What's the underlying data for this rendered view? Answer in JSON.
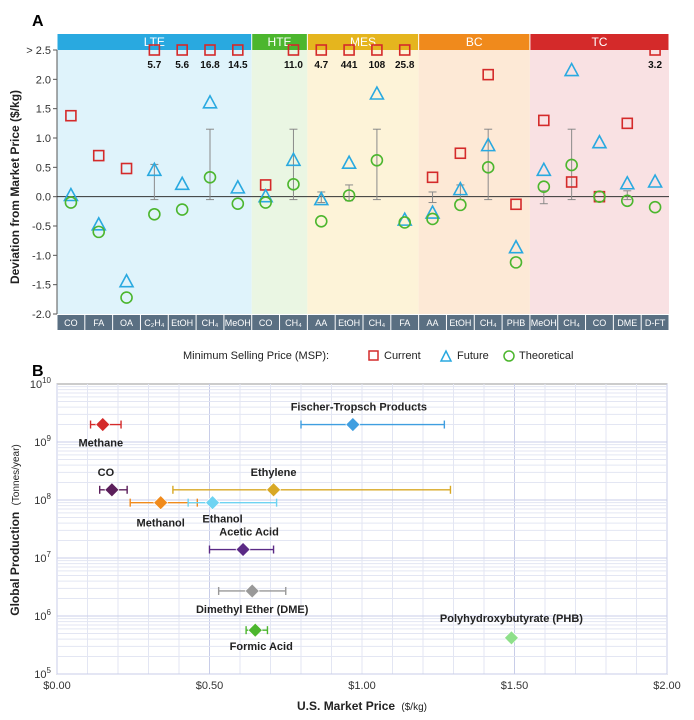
{
  "chart_data": [
    {
      "type": "scatter",
      "panel_label": "A",
      "ylabel": "Deviation from Market Price ($/kg)",
      "ylim": [
        -2.0,
        2.5
      ],
      "y_ticks": [
        "> 2.5",
        "2.0",
        "1.5",
        "1.0",
        "0.5",
        "0.0",
        "-0.5",
        "-1.0",
        "-1.5",
        "-2.0"
      ],
      "groups": [
        {
          "name": "LTE",
          "color": "#29a9e0",
          "bg": "#dff3fb",
          "start": 0,
          "end": 7
        },
        {
          "name": "HTE",
          "color": "#4cb62e",
          "bg": "#eaf6e3",
          "start": 7,
          "end": 9
        },
        {
          "name": "MES",
          "color": "#e5b51e",
          "bg": "#fdf3d8",
          "start": 9,
          "end": 13
        },
        {
          "name": "BC",
          "color": "#f08a1c",
          "bg": "#fde9d6",
          "start": 13,
          "end": 17
        },
        {
          "name": "TC",
          "color": "#d42a2a",
          "bg": "#f9e1e3",
          "start": 17,
          "end": 22
        }
      ],
      "categories": [
        "CO",
        "FA",
        "OA",
        "C₂H₄",
        "EtOH",
        "CH₄",
        "MeOH",
        "CO",
        "CH₄",
        "AA",
        "EtOH",
        "CH₄",
        "FA",
        "AA",
        "EtOH",
        "CH₄",
        "PHB",
        "MeOH",
        "CH₄",
        "CO",
        "DME",
        "D-FT"
      ],
      "series": [
        {
          "name": "Current",
          "color": "#d42a2a",
          "values": [
            1.38,
            0.7,
            0.48,
            2.5,
            2.5,
            2.5,
            2.5,
            0.2,
            2.5,
            2.5,
            2.5,
            2.5,
            2.5,
            0.33,
            0.74,
            2.08,
            -0.13,
            1.3,
            0.25,
            0.0,
            1.25,
            2.5
          ]
        },
        {
          "name": "Future",
          "color": "#29a9e0",
          "values": [
            0.02,
            -0.48,
            -1.45,
            0.45,
            0.21,
            1.6,
            0.15,
            0.0,
            0.62,
            -0.05,
            0.57,
            1.75,
            -0.4,
            -0.28,
            0.12,
            0.87,
            -0.87,
            0.45,
            2.15,
            0.92,
            0.22,
            0.25
          ]
        },
        {
          "name": "Theoretical",
          "color": "#4cb62e",
          "values": [
            -0.1,
            -0.6,
            -1.72,
            -0.3,
            -0.22,
            0.33,
            -0.12,
            -0.1,
            0.21,
            -0.42,
            0.02,
            0.62,
            -0.44,
            -0.38,
            -0.14,
            0.5,
            -1.12,
            0.17,
            0.54,
            0.0,
            -0.07,
            -0.18
          ]
        }
      ],
      "offscale_labels": [
        {
          "index": 3,
          "text": "5.7"
        },
        {
          "index": 4,
          "text": "5.6"
        },
        {
          "index": 5,
          "text": "16.8"
        },
        {
          "index": 6,
          "text": "14.5"
        },
        {
          "index": 8,
          "text": "11.0"
        },
        {
          "index": 9,
          "text": "4.7"
        },
        {
          "index": 10,
          "text": "441"
        },
        {
          "index": 11,
          "text": "108"
        },
        {
          "index": 12,
          "text": "25.8"
        },
        {
          "index": 21,
          "text": "3.2"
        }
      ],
      "error_bars": [
        {
          "index": 3,
          "low": -0.05,
          "high": 0.55
        },
        {
          "index": 5,
          "low": -0.05,
          "high": 1.15
        },
        {
          "index": 8,
          "low": -0.05,
          "high": 1.15
        },
        {
          "index": 9,
          "low": -0.1,
          "high": 0.08
        },
        {
          "index": 10,
          "low": -0.07,
          "high": 0.2
        },
        {
          "index": 11,
          "low": -0.05,
          "high": 1.15
        },
        {
          "index": 13,
          "low": -0.1,
          "high": 0.08
        },
        {
          "index": 14,
          "low": -0.05,
          "high": 0.2
        },
        {
          "index": 15,
          "low": -0.05,
          "high": 1.15
        },
        {
          "index": 17,
          "low": -0.12,
          "high": 0.1
        },
        {
          "index": 18,
          "low": -0.05,
          "high": 1.15
        },
        {
          "index": 20,
          "low": -0.05,
          "high": 0.1
        }
      ],
      "legend": {
        "title": "Minimum Selling Price (MSP):",
        "items": [
          "Current",
          "Future",
          "Theoretical"
        ],
        "placement": "bottom-center"
      }
    },
    {
      "type": "scatter",
      "panel_label": "B",
      "xlabel": "U.S. Market Price",
      "xlabel_unit": "($/kg)",
      "ylabel": "Global Production",
      "ylabel_unit": "(Tonnes/year)",
      "xlim": [
        0,
        2.0
      ],
      "x_ticks": [
        "$0.00",
        "$0.50",
        "$1.00",
        "$1.50",
        "$2.00"
      ],
      "y_scale": "log",
      "ylim": [
        100000,
        10000000000
      ],
      "y_ticks_base": "10",
      "y_ticks_exp": [
        "5",
        "6",
        "7",
        "8",
        "9",
        "10"
      ],
      "grid": true,
      "points": [
        {
          "name": "Methane",
          "x": 0.15,
          "xlow": 0.11,
          "xhigh": 0.21,
          "y": 2000000000,
          "color": "#d42a2a"
        },
        {
          "name": "Fischer-Tropsch Products",
          "x": 0.97,
          "xlow": 0.8,
          "xhigh": 1.27,
          "y": 2000000000,
          "color": "#3f9ee0"
        },
        {
          "name": "CO",
          "x": 0.18,
          "xlow": 0.14,
          "xhigh": 0.23,
          "y": 150000000,
          "color": "#5b1e5b"
        },
        {
          "name": "Ethylene",
          "x": 0.71,
          "xlow": 0.38,
          "xhigh": 1.29,
          "y": 150000000,
          "color": "#d8a825"
        },
        {
          "name": "Methanol",
          "x": 0.34,
          "xlow": 0.24,
          "xhigh": 0.46,
          "y": 90000000,
          "color": "#f08a1c"
        },
        {
          "name": "Ethanol",
          "x": 0.51,
          "xlow": 0.43,
          "xhigh": 0.72,
          "y": 90000000,
          "color": "#6ed3f2"
        },
        {
          "name": "Acetic Acid",
          "x": 0.61,
          "xlow": 0.5,
          "xhigh": 0.71,
          "y": 14000000,
          "color": "#5b2a86"
        },
        {
          "name": "Dimethyl Ether (DME)",
          "x": 0.64,
          "xlow": 0.53,
          "xhigh": 0.75,
          "y": 2700000,
          "color": "#999999"
        },
        {
          "name": "Formic Acid",
          "x": 0.65,
          "xlow": 0.62,
          "xhigh": 0.69,
          "y": 570000,
          "color": "#4cb62e"
        },
        {
          "name": "Polyhydroxybutyrate (PHB)",
          "x": 1.49,
          "xlow": 1.49,
          "xhigh": 1.49,
          "y": 420000,
          "color": "#8ee08a"
        }
      ]
    }
  ]
}
